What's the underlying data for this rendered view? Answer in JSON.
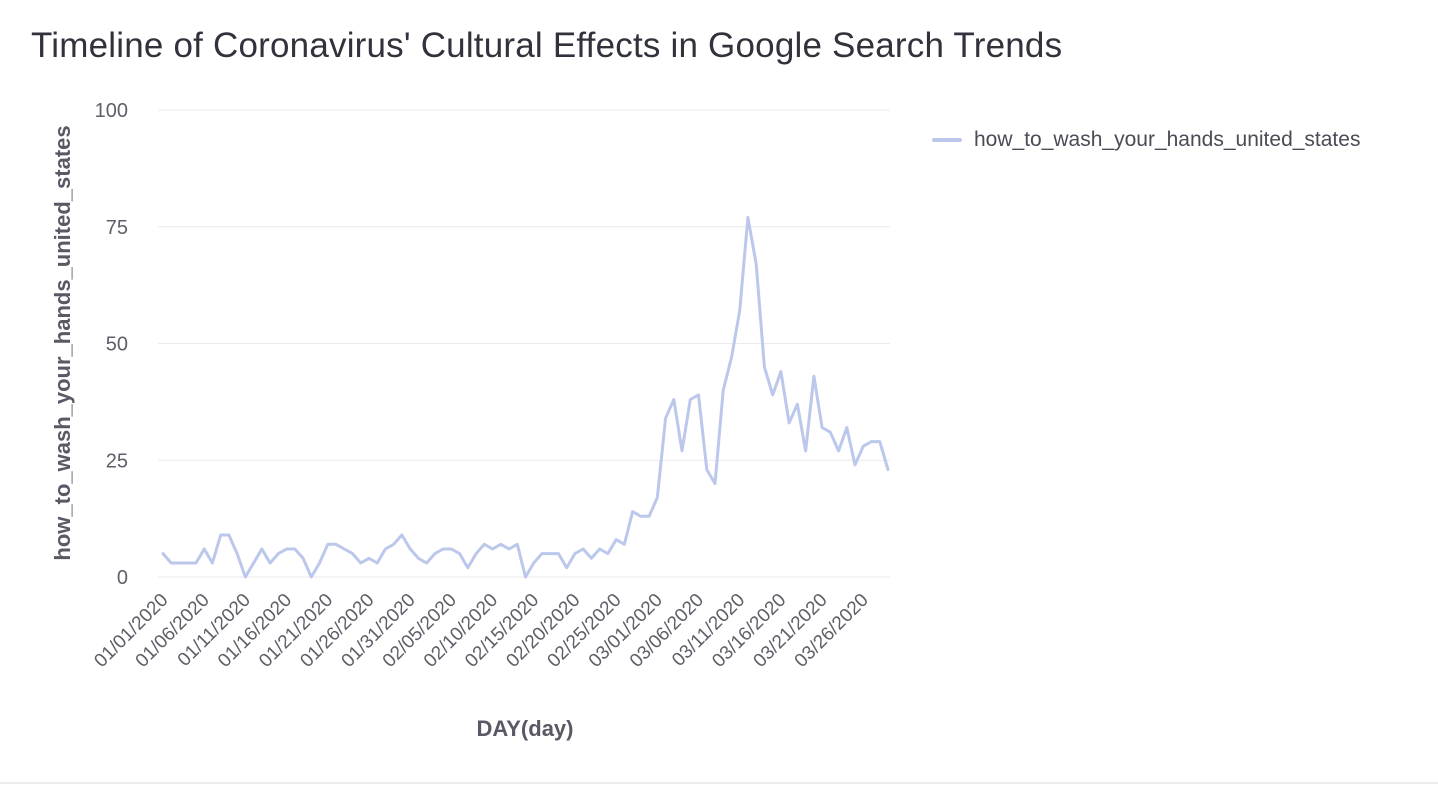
{
  "chart_data": {
    "type": "line",
    "title": "Timeline of Coronavirus' Cultural Effects in Google Search Trends",
    "xlabel": "DAY(day)",
    "ylabel": "how_to_wash_your_hands_united_states",
    "ylim": [
      0,
      100
    ],
    "yticks": [
      "0",
      "25",
      "50",
      "75",
      "100"
    ],
    "xticks": [
      "01/01/2020",
      "01/06/2020",
      "01/11/2020",
      "01/16/2020",
      "01/21/2020",
      "01/26/2020",
      "01/31/2020",
      "02/05/2020",
      "02/10/2020",
      "02/15/2020",
      "02/20/2020",
      "02/25/2020",
      "03/01/2020",
      "03/06/2020",
      "03/11/2020",
      "03/16/2020",
      "03/21/2020",
      "03/26/2020"
    ],
    "grid": true,
    "legend_position": "top-right",
    "x_start": "01/01/2020",
    "x_end": "03/31/2020",
    "series": [
      {
        "name": "how_to_wash_your_hands_united_states",
        "color": "#bcc7ec",
        "values": [
          5,
          3,
          3,
          3,
          3,
          6,
          3,
          9,
          9,
          5,
          0,
          3,
          6,
          3,
          5,
          6,
          6,
          4,
          0,
          3,
          7,
          7,
          6,
          5,
          3,
          4,
          3,
          6,
          7,
          9,
          6,
          4,
          3,
          5,
          6,
          6,
          5,
          2,
          5,
          7,
          6,
          7,
          6,
          7,
          0,
          3,
          5,
          5,
          5,
          2,
          5,
          6,
          4,
          6,
          5,
          8,
          7,
          14,
          13,
          13,
          17,
          34,
          38,
          27,
          38,
          39,
          23,
          20,
          40,
          47,
          57,
          77,
          67,
          45,
          39,
          44,
          33,
          37,
          27,
          43,
          32,
          31,
          27,
          32,
          24,
          28,
          29,
          29,
          23
        ]
      }
    ]
  }
}
